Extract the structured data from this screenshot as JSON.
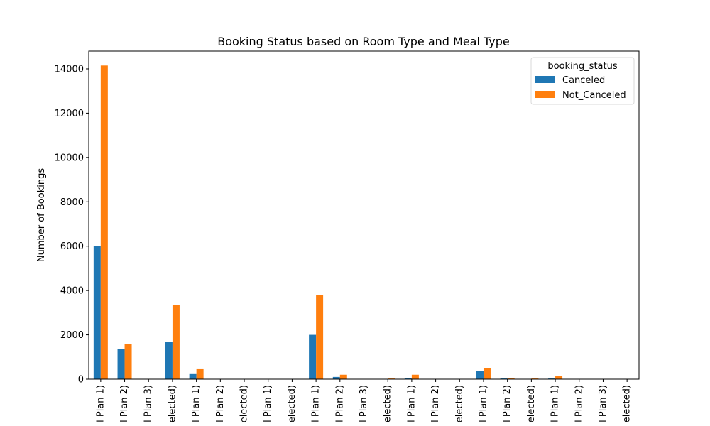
{
  "chart_data": {
    "type": "bar",
    "title": "Booking Status based on Room Type and Meal Type",
    "xlabel": "",
    "ylabel": "Number of Bookings",
    "ylim": [
      0,
      14800
    ],
    "yticks": [
      0,
      2000,
      4000,
      6000,
      8000,
      10000,
      12000,
      14000
    ],
    "grid": false,
    "legend_title": "booking_status",
    "legend_position": "top-right",
    "categories": [
      "l Plan 1)",
      "l Plan 2)",
      "l Plan 3)",
      "elected)",
      "l Plan 1)",
      "l Plan 2)",
      "elected)",
      "l Plan 1)",
      "elected)",
      "l Plan 1)",
      "l Plan 2)",
      "l Plan 3)",
      "elected)",
      "l Plan 1)",
      "l Plan 2)",
      "elected)",
      "l Plan 1)",
      "l Plan 2)",
      "elected)",
      "l Plan 1)",
      "l Plan 2)",
      "l Plan 3)",
      "elected)"
    ],
    "series": [
      {
        "name": "Canceled",
        "color": "#1f77b4",
        "values": [
          6000,
          1360,
          0,
          1680,
          230,
          0,
          0,
          0,
          0,
          2000,
          100,
          0,
          10,
          60,
          0,
          0,
          360,
          30,
          0,
          30,
          0,
          0,
          0
        ]
      },
      {
        "name": "Not_Canceled",
        "color": "#ff7f0e",
        "values": [
          14150,
          1580,
          0,
          3360,
          450,
          0,
          0,
          0,
          0,
          3780,
          200,
          0,
          30,
          200,
          0,
          0,
          510,
          40,
          30,
          140,
          0,
          0,
          0
        ]
      }
    ]
  }
}
